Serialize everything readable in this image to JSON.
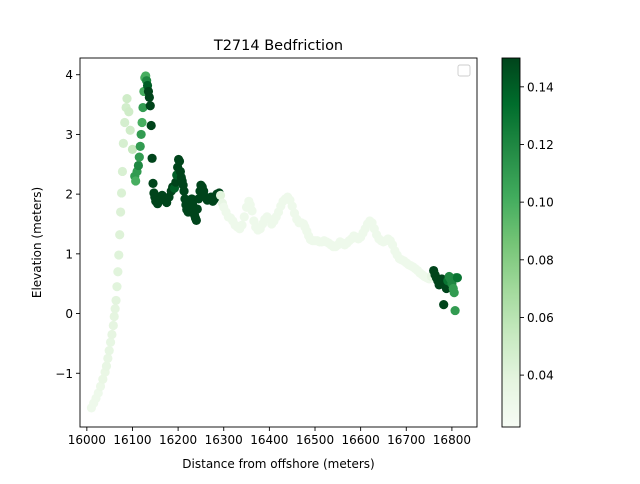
{
  "chart_data": {
    "type": "scatter",
    "title": "T2714 Bedfriction",
    "xlabel": "Distance from offshore (meters)",
    "ylabel": "Elevation (meters)",
    "xlim": [
      15985,
      16855
    ],
    "ylim": [
      -1.9,
      4.28
    ],
    "xticks": [
      16000,
      16100,
      16200,
      16300,
      16400,
      16500,
      16600,
      16700,
      16800
    ],
    "yticks": [
      -1,
      0,
      1,
      2,
      3,
      4
    ],
    "colormap": "Greens",
    "colorbar": {
      "min": 0.022,
      "max": 0.15,
      "ticks": [
        0.04,
        0.06,
        0.08,
        0.1,
        0.12,
        0.14
      ],
      "tick_labels": [
        "0.04",
        "0.06",
        "0.08",
        "0.10",
        "0.12",
        "0.14"
      ]
    },
    "legend": "top-right (empty)",
    "grid": false,
    "points": [
      [
        16010,
        -1.58,
        0.03
      ],
      [
        16015,
        -1.5,
        0.03
      ],
      [
        16020,
        -1.42,
        0.03
      ],
      [
        16025,
        -1.33,
        0.03
      ],
      [
        16030,
        -1.22,
        0.032
      ],
      [
        16035,
        -1.1,
        0.034
      ],
      [
        16040,
        -0.98,
        0.034
      ],
      [
        16043,
        -0.88,
        0.035
      ],
      [
        16046,
        -0.75,
        0.035
      ],
      [
        16049,
        -0.62,
        0.036
      ],
      [
        16052,
        -0.48,
        0.036
      ],
      [
        16055,
        -0.35,
        0.037
      ],
      [
        16058,
        -0.2,
        0.037
      ],
      [
        16060,
        -0.05,
        0.038
      ],
      [
        16062,
        0.08,
        0.038
      ],
      [
        16064,
        0.22,
        0.039
      ],
      [
        16066,
        0.45,
        0.04
      ],
      [
        16068,
        0.7,
        0.04
      ],
      [
        16070,
        0.98,
        0.041
      ],
      [
        16072,
        1.32,
        0.042
      ],
      [
        16074,
        1.7,
        0.043
      ],
      [
        16076,
        2.02,
        0.044
      ],
      [
        16078,
        2.38,
        0.045
      ],
      [
        16080,
        2.85,
        0.046
      ],
      [
        16083,
        3.2,
        0.047
      ],
      [
        16086,
        3.45,
        0.048
      ],
      [
        16088,
        3.6,
        0.05
      ],
      [
        16092,
        3.38,
        0.05
      ],
      [
        16095,
        3.07,
        0.05
      ],
      [
        16100,
        2.75,
        0.055
      ],
      [
        16105,
        2.3,
        0.11
      ],
      [
        16107,
        2.22,
        0.1
      ],
      [
        16110,
        2.38,
        0.11
      ],
      [
        16113,
        2.48,
        0.12
      ],
      [
        16115,
        2.62,
        0.11
      ],
      [
        16117,
        2.8,
        0.11
      ],
      [
        16119,
        3.0,
        0.11
      ],
      [
        16121,
        3.2,
        0.1
      ],
      [
        16123,
        3.45,
        0.11
      ],
      [
        16125,
        3.72,
        0.1
      ],
      [
        16127,
        3.95,
        0.1
      ],
      [
        16129,
        3.98,
        0.1
      ],
      [
        16131,
        3.9,
        0.12
      ],
      [
        16133,
        3.82,
        0.14
      ],
      [
        16135,
        3.72,
        0.15
      ],
      [
        16137,
        3.62,
        0.15
      ],
      [
        16139,
        3.48,
        0.15
      ],
      [
        16141,
        3.15,
        0.15
      ],
      [
        16143,
        2.6,
        0.15
      ],
      [
        16145,
        2.18,
        0.15
      ],
      [
        16147,
        2.02,
        0.15
      ],
      [
        16149,
        1.95,
        0.15
      ],
      [
        16151,
        1.88,
        0.15
      ],
      [
        16155,
        1.84,
        0.15
      ],
      [
        16160,
        1.9,
        0.15
      ],
      [
        16165,
        1.98,
        0.15
      ],
      [
        16170,
        1.9,
        0.15
      ],
      [
        16175,
        1.86,
        0.15
      ],
      [
        16180,
        1.95,
        0.15
      ],
      [
        16185,
        2.05,
        0.15
      ],
      [
        16188,
        2.12,
        0.15
      ],
      [
        16192,
        2.1,
        0.14
      ],
      [
        16195,
        2.2,
        0.15
      ],
      [
        16197,
        2.32,
        0.14
      ],
      [
        16199,
        2.45,
        0.15
      ],
      [
        16201,
        2.58,
        0.15
      ],
      [
        16203,
        2.55,
        0.15
      ],
      [
        16205,
        2.38,
        0.15
      ],
      [
        16207,
        2.28,
        0.15
      ],
      [
        16209,
        2.22,
        0.15
      ],
      [
        16211,
        2.15,
        0.15
      ],
      [
        16213,
        2.05,
        0.15
      ],
      [
        16215,
        1.92,
        0.15
      ],
      [
        16217,
        1.82,
        0.15
      ],
      [
        16219,
        1.74,
        0.15
      ],
      [
        16222,
        1.7,
        0.15
      ],
      [
        16225,
        1.78,
        0.15
      ],
      [
        16228,
        1.88,
        0.15
      ],
      [
        16230,
        1.92,
        0.15
      ],
      [
        16232,
        1.82,
        0.15
      ],
      [
        16234,
        1.7,
        0.15
      ],
      [
        16236,
        1.65,
        0.15
      ],
      [
        16238,
        1.6,
        0.15
      ],
      [
        16240,
        1.56,
        0.15
      ],
      [
        16242,
        1.75,
        0.15
      ],
      [
        16245,
        1.92,
        0.15
      ],
      [
        16248,
        2.05,
        0.15
      ],
      [
        16250,
        2.15,
        0.15
      ],
      [
        16253,
        2.12,
        0.15
      ],
      [
        16256,
        2.05,
        0.15
      ],
      [
        16260,
        1.95,
        0.15
      ],
      [
        16264,
        1.9,
        0.15
      ],
      [
        16268,
        1.92,
        0.15
      ],
      [
        16272,
        1.95,
        0.15
      ],
      [
        16276,
        1.88,
        0.15
      ],
      [
        16280,
        1.92,
        0.15
      ],
      [
        16285,
        2.0,
        0.15
      ],
      [
        16290,
        2.02,
        0.15
      ],
      [
        16293,
        1.98,
        0.04
      ],
      [
        16297,
        1.85,
        0.035
      ],
      [
        16300,
        1.78,
        0.03
      ],
      [
        16305,
        1.7,
        0.03
      ],
      [
        16310,
        1.62,
        0.03
      ],
      [
        16315,
        1.6,
        0.03
      ],
      [
        16320,
        1.55,
        0.03
      ],
      [
        16325,
        1.48,
        0.03
      ],
      [
        16330,
        1.45,
        0.03
      ],
      [
        16335,
        1.42,
        0.03
      ],
      [
        16340,
        1.48,
        0.03
      ],
      [
        16345,
        1.62,
        0.03
      ],
      [
        16350,
        1.78,
        0.03
      ],
      [
        16355,
        1.88,
        0.03
      ],
      [
        16358,
        1.82,
        0.03
      ],
      [
        16362,
        1.72,
        0.03
      ],
      [
        16366,
        1.55,
        0.03
      ],
      [
        16370,
        1.45,
        0.03
      ],
      [
        16375,
        1.4,
        0.03
      ],
      [
        16380,
        1.42,
        0.03
      ],
      [
        16385,
        1.5,
        0.03
      ],
      [
        16390,
        1.58,
        0.03
      ],
      [
        16395,
        1.62,
        0.03
      ],
      [
        16400,
        1.58,
        0.03
      ],
      [
        16405,
        1.5,
        0.03
      ],
      [
        16410,
        1.55,
        0.03
      ],
      [
        16415,
        1.62,
        0.03
      ],
      [
        16420,
        1.7,
        0.03
      ],
      [
        16425,
        1.8,
        0.03
      ],
      [
        16430,
        1.88,
        0.03
      ],
      [
        16435,
        1.92,
        0.03
      ],
      [
        16440,
        1.95,
        0.03
      ],
      [
        16445,
        1.9,
        0.03
      ],
      [
        16450,
        1.8,
        0.03
      ],
      [
        16455,
        1.68,
        0.03
      ],
      [
        16460,
        1.58,
        0.03
      ],
      [
        16465,
        1.52,
        0.03
      ],
      [
        16470,
        1.52,
        0.03
      ],
      [
        16475,
        1.5,
        0.03
      ],
      [
        16478,
        1.45,
        0.03
      ],
      [
        16482,
        1.38,
        0.03
      ],
      [
        16486,
        1.3,
        0.03
      ],
      [
        16490,
        1.24,
        0.03
      ],
      [
        16495,
        1.22,
        0.03
      ],
      [
        16500,
        1.22,
        0.03
      ],
      [
        16505,
        1.22,
        0.03
      ],
      [
        16510,
        1.2,
        0.03
      ],
      [
        16515,
        1.2,
        0.03
      ],
      [
        16520,
        1.22,
        0.03
      ],
      [
        16525,
        1.2,
        0.03
      ],
      [
        16530,
        1.18,
        0.03
      ],
      [
        16535,
        1.15,
        0.03
      ],
      [
        16540,
        1.12,
        0.03
      ],
      [
        16545,
        1.12,
        0.03
      ],
      [
        16550,
        1.15,
        0.03
      ],
      [
        16555,
        1.2,
        0.03
      ],
      [
        16560,
        1.18,
        0.03
      ],
      [
        16565,
        1.15,
        0.03
      ],
      [
        16570,
        1.18,
        0.03
      ],
      [
        16575,
        1.22,
        0.03
      ],
      [
        16580,
        1.25,
        0.03
      ],
      [
        16585,
        1.3,
        0.03
      ],
      [
        16590,
        1.28,
        0.03
      ],
      [
        16595,
        1.25,
        0.03
      ],
      [
        16600,
        1.28,
        0.03
      ],
      [
        16605,
        1.35,
        0.03
      ],
      [
        16610,
        1.42,
        0.03
      ],
      [
        16615,
        1.5,
        0.03
      ],
      [
        16620,
        1.55,
        0.03
      ],
      [
        16625,
        1.52,
        0.03
      ],
      [
        16630,
        1.42,
        0.03
      ],
      [
        16635,
        1.32,
        0.03
      ],
      [
        16640,
        1.25,
        0.03
      ],
      [
        16645,
        1.22,
        0.03
      ],
      [
        16650,
        1.2,
        0.03
      ],
      [
        16655,
        1.22,
        0.03
      ],
      [
        16660,
        1.25,
        0.03
      ],
      [
        16665,
        1.22,
        0.03
      ],
      [
        16670,
        1.15,
        0.03
      ],
      [
        16675,
        1.05,
        0.03
      ],
      [
        16680,
        0.98,
        0.03
      ],
      [
        16685,
        0.92,
        0.03
      ],
      [
        16690,
        0.9,
        0.03
      ],
      [
        16695,
        0.88,
        0.03
      ],
      [
        16700,
        0.85,
        0.03
      ],
      [
        16705,
        0.82,
        0.03
      ],
      [
        16710,
        0.8,
        0.03
      ],
      [
        16715,
        0.78,
        0.03
      ],
      [
        16720,
        0.75,
        0.03
      ],
      [
        16725,
        0.72,
        0.03
      ],
      [
        16730,
        0.68,
        0.03
      ],
      [
        16735,
        0.65,
        0.03
      ],
      [
        16740,
        0.62,
        0.03
      ],
      [
        16745,
        0.6,
        0.03
      ],
      [
        16750,
        0.58,
        0.03
      ],
      [
        16755,
        0.62,
        0.035
      ],
      [
        16760,
        0.72,
        0.15
      ],
      [
        16763,
        0.65,
        0.15
      ],
      [
        16766,
        0.6,
        0.15
      ],
      [
        16769,
        0.55,
        0.15
      ],
      [
        16772,
        0.48,
        0.15
      ],
      [
        16775,
        0.52,
        0.15
      ],
      [
        16778,
        0.58,
        0.15
      ],
      [
        16782,
        0.15,
        0.15
      ],
      [
        16785,
        0.48,
        0.15
      ],
      [
        16788,
        0.42,
        0.15
      ],
      [
        16791,
        0.55,
        0.13
      ],
      [
        16794,
        0.62,
        0.12
      ],
      [
        16797,
        0.58,
        0.12
      ],
      [
        16800,
        0.5,
        0.12
      ],
      [
        16803,
        0.42,
        0.11
      ],
      [
        16805,
        0.35,
        0.11
      ],
      [
        16807,
        0.05,
        0.11
      ],
      [
        16809,
        0.6,
        0.12
      ],
      [
        16812,
        0.6,
        0.13
      ]
    ]
  }
}
